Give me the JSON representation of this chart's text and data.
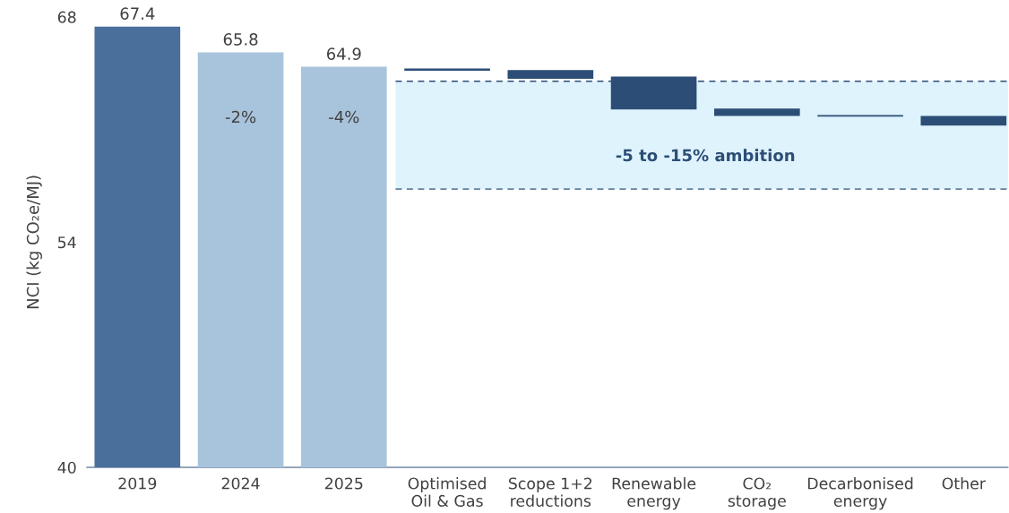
{
  "chart_data": {
    "type": "bar",
    "ylabel": "NCI (kg CO₂e/MJ)",
    "categories": [
      "2019",
      "2024",
      "2025",
      "Optimised\nOil & Gas",
      "Scope 1+2\nreductions",
      "Renewable\nenergy",
      "CO₂\nstorage",
      "Decarbonised\nenergy",
      "Other"
    ],
    "values": [
      67.4,
      65.8,
      64.9,
      0.15,
      0.55,
      2.05,
      0.45,
      0.1,
      0.6
    ],
    "base": [
      null,
      null,
      null,
      64.65,
      64.15,
      62.25,
      61.85,
      61.8,
      61.25
    ],
    "colors": [
      "#4a6f9a",
      "#a8c3dc",
      "#a8c3dc",
      "#2c4e76",
      "#2c4e76",
      "#2c4e76",
      "#2c4e76",
      "#2c4e76",
      "#2c4e76"
    ],
    "value_labels": [
      "67.4",
      "65.8",
      "64.9",
      null,
      null,
      null,
      null,
      null,
      null
    ],
    "annotations": [
      "-2%",
      "-4%"
    ],
    "bands": [
      {
        "axis": "y",
        "from": 57.3,
        "to": 64.0,
        "label": "-5 to -15% ambition",
        "color": "#dff3fd"
      }
    ],
    "ref_lines": [
      {
        "axis": "y",
        "value": 64.0,
        "color": "#2c4e76",
        "line_style": "dashed"
      },
      {
        "axis": "y",
        "value": 57.3,
        "color": "#2c4e76",
        "line_style": "dashed"
      }
    ],
    "ylim": [
      40,
      68
    ],
    "yticks": [
      40,
      54,
      68
    ],
    "grid": false,
    "legend": false
  }
}
